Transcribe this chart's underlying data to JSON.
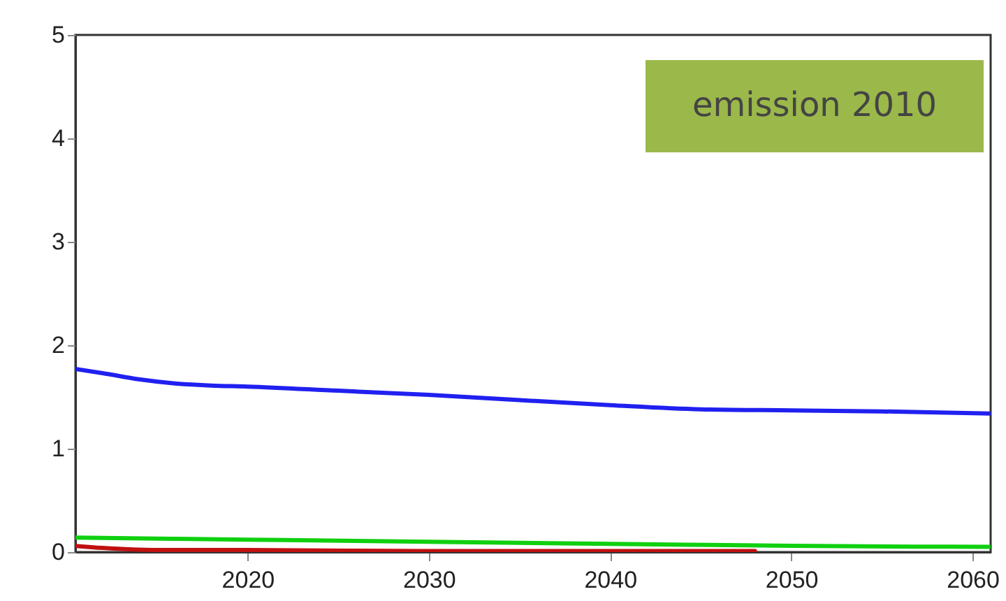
{
  "chart_data": {
    "type": "line",
    "annotations": [
      "emission 2010"
    ],
    "xlim": [
      2010.5,
      2061
    ],
    "xticks": [
      2020,
      2030,
      2040,
      2050,
      2060
    ],
    "ylim": [
      0,
      5
    ],
    "yticks": [
      0,
      1,
      2,
      3,
      4,
      5
    ],
    "grid": false,
    "legend": false,
    "series": [
      {
        "color": "#2020f0",
        "x": [
          2010.5,
          2012,
          2014,
          2016,
          2018,
          2020,
          2025,
          2030,
          2035,
          2040,
          2045,
          2050,
          2055,
          2061
        ],
        "values": [
          1.77,
          1.73,
          1.67,
          1.63,
          1.61,
          1.6,
          1.56,
          1.52,
          1.47,
          1.42,
          1.38,
          1.37,
          1.36,
          1.34
        ]
      },
      {
        "color": "#10d010",
        "x": [
          2010.5,
          2020,
          2030,
          2040,
          2050,
          2061
        ],
        "values": [
          0.14,
          0.12,
          0.1,
          0.08,
          0.06,
          0.05
        ]
      },
      {
        "color": "#c01010",
        "x": [
          2010.5,
          2012,
          2015,
          2020,
          2030,
          2040,
          2048
        ],
        "values": [
          0.06,
          0.04,
          0.02,
          0.02,
          0.01,
          0.01,
          0.01
        ]
      }
    ]
  }
}
